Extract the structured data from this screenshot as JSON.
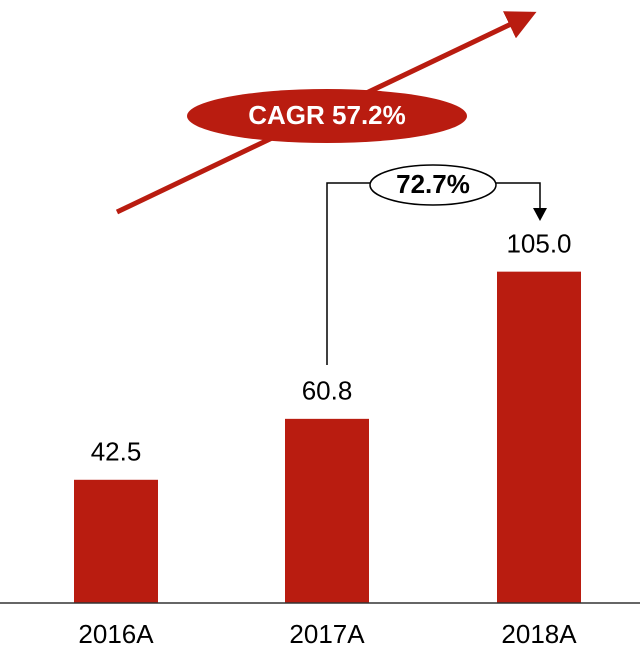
{
  "chart_data": {
    "type": "bar",
    "categories": [
      "2016A",
      "2017A",
      "2018A"
    ],
    "values": [
      42.5,
      60.8,
      105
    ],
    "value_labels": [
      "42.5",
      "60.8",
      "105.0"
    ],
    "color": "#b91c10",
    "ylim": [
      5.5,
      150
    ],
    "annotations": {
      "cagr": "CAGR 57.2%",
      "growth": "72.7%"
    }
  }
}
